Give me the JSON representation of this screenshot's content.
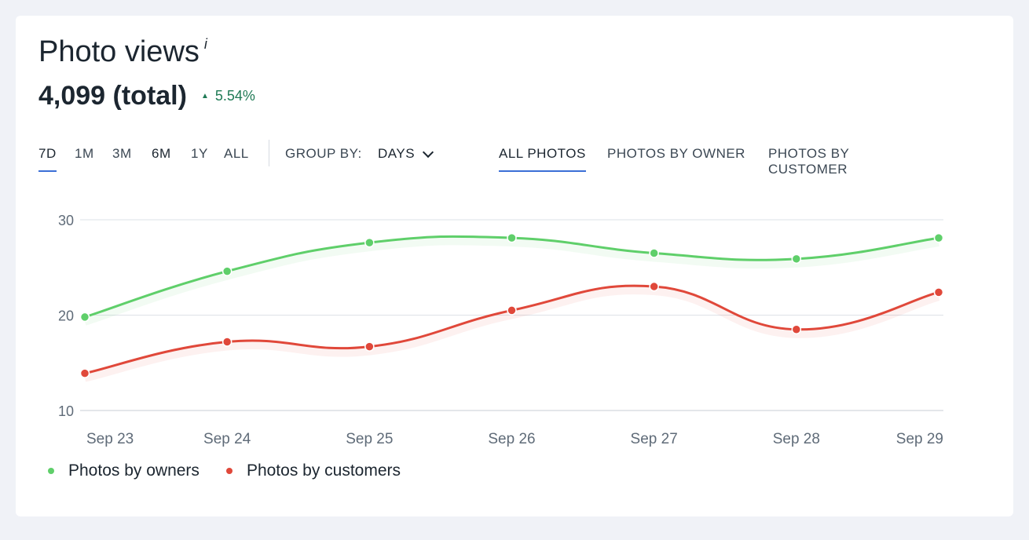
{
  "header": {
    "title": "Photo views",
    "info_icon": "i",
    "total": "4,099 (total)",
    "trend_icon": "triangle-up-icon",
    "trend_value": "5.54%",
    "trend_color": "#1f7a55"
  },
  "toolbar": {
    "ranges": [
      "7D",
      "1M",
      "3M",
      "6M",
      "1Y",
      "ALL"
    ],
    "active_range": "7D",
    "group_by_label": "GROUP BY:",
    "group_by_value": "DAYS",
    "tabs": [
      "ALL PHOTOS",
      "PHOTOS BY OWNER",
      "PHOTOS BY CUSTOMER"
    ],
    "active_tab": "ALL PHOTOS",
    "accent": "#3b6fd6"
  },
  "legend": {
    "owners": "Photos by owners",
    "customers": "Photos by customers"
  },
  "chart_data": {
    "type": "line",
    "title": "",
    "xlabel": "",
    "ylabel": "",
    "categories": [
      "Sep 23",
      "Sep 24",
      "Sep 25",
      "Sep 26",
      "Sep 27",
      "Sep 28",
      "Sep 29"
    ],
    "ylim": [
      10,
      30
    ],
    "yticks": [
      10,
      20,
      30
    ],
    "grid": true,
    "legend_position": "bottom-left",
    "series": [
      {
        "name": "Photos by owners",
        "color": "#5fcf6a",
        "values": [
          19.8,
          24.6,
          27.6,
          28.1,
          26.5,
          25.9,
          28.1
        ]
      },
      {
        "name": "Photos by customers",
        "color": "#e0483a",
        "values": [
          13.9,
          17.2,
          16.7,
          20.5,
          23.0,
          18.5,
          22.4
        ]
      }
    ]
  }
}
